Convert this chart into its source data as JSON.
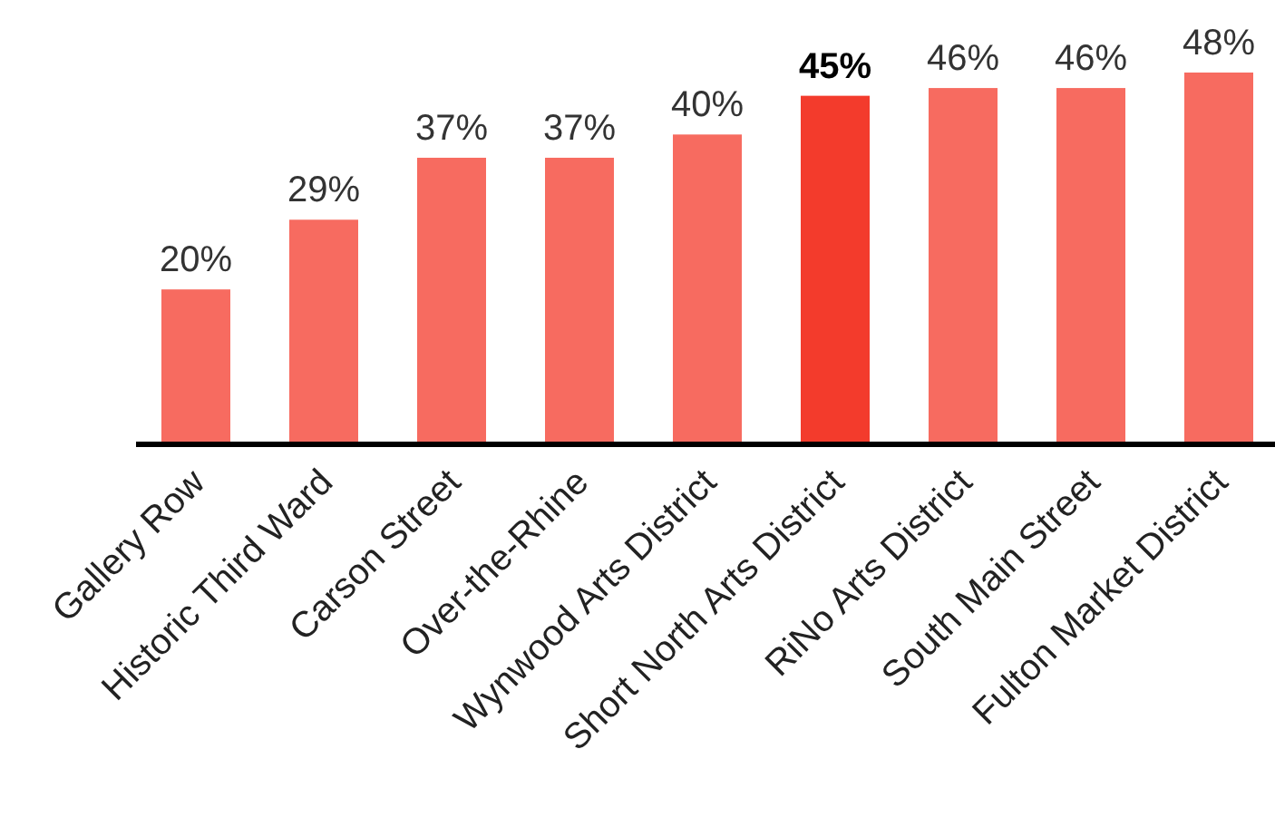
{
  "chart_data": {
    "type": "bar",
    "categories": [
      "Gallery Row",
      "Historic Third Ward",
      "Carson Street",
      "Over-the-Rhine",
      "Wynwood Arts District",
      "Short North Arts District",
      "RiNo Arts District",
      "South Main Street",
      "Fulton Market District"
    ],
    "values": [
      20,
      29,
      37,
      37,
      40,
      45,
      46,
      46,
      48
    ],
    "colors": [
      "#f76b60",
      "#f76b60",
      "#f76b60",
      "#f76b60",
      "#f76b60",
      "#f33b2c",
      "#f76b60",
      "#f76b60",
      "#f76b60"
    ],
    "value_labels": [
      "20%",
      "29%",
      "37%",
      "37%",
      "40%",
      "45%",
      "46%",
      "46%",
      "48%"
    ]
  }
}
